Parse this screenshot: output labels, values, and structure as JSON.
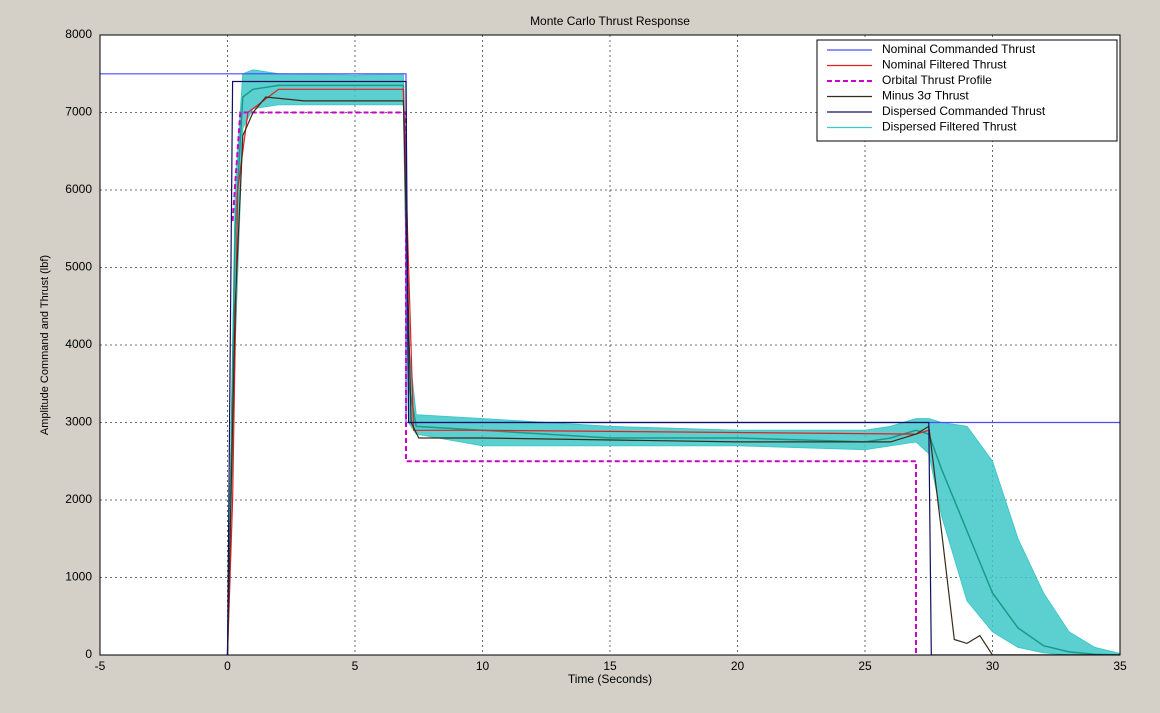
{
  "chart_data": {
    "type": "line",
    "title": "Monte Carlo Thrust Response",
    "xlabel": "Time (Seconds)",
    "ylabel": "Amplitude Command and Thrust (lbf)",
    "xlim": [
      -5,
      35
    ],
    "xticks": [
      -5,
      0,
      5,
      10,
      15,
      20,
      25,
      30,
      35
    ],
    "ylim": [
      0,
      8000
    ],
    "yticks": [
      0,
      1000,
      2000,
      3000,
      4000,
      5000,
      6000,
      7000,
      8000
    ],
    "grid": true,
    "legend": "upper right",
    "series": [
      {
        "name": "Nominal Commanded Thrust",
        "color": "#4b4bff",
        "style": "solid",
        "x": [
          -5,
          7,
          7,
          35
        ],
        "values": [
          7500,
          7500,
          3000,
          3000
        ]
      },
      {
        "name": "Nominal Filtered Thrust",
        "color": "#e02020",
        "style": "solid",
        "x": [
          0,
          0.2,
          0.4,
          0.8,
          2,
          6.9,
          7.1,
          7.3,
          10,
          27,
          27.5
        ],
        "values": [
          0,
          2000,
          6000,
          7000,
          7300,
          7300,
          5000,
          2900,
          2900,
          2850,
          2900
        ]
      },
      {
        "name": "Orbital Thrust Profile",
        "color": "#cc00cc",
        "style": "dashed",
        "x": [
          0.2,
          0.5,
          7,
          7,
          27,
          27
        ],
        "values": [
          5600,
          7000,
          7000,
          2500,
          2500,
          0
        ]
      },
      {
        "name": "Minus 3σ Thrust",
        "color": "#3a2a1a",
        "style": "solid",
        "x": [
          0,
          0.3,
          0.6,
          1,
          1.5,
          3,
          6.9,
          7.2,
          7.5,
          10,
          20,
          26,
          27,
          27.5,
          28,
          28.5,
          29,
          29.5,
          30,
          35
        ],
        "values": [
          0,
          4500,
          6700,
          7000,
          7200,
          7150,
          7150,
          3000,
          2800,
          2800,
          2750,
          2750,
          2850,
          2950,
          1600,
          200,
          150,
          250,
          0,
          0
        ]
      },
      {
        "name": "Dispersed Commanded Thrust",
        "color": "#101060",
        "style": "solid",
        "x": [
          0,
          0.2,
          7,
          7.1,
          27.5,
          27.6,
          35
        ],
        "values": [
          0,
          7400,
          7400,
          3000,
          3000,
          0,
          0
        ]
      },
      {
        "name": "Dispersed Filtered Thrust",
        "color": "#40c8c8",
        "line_color": "#1a9a8a",
        "style": "band",
        "x": [
          0,
          0.3,
          0.6,
          1,
          2,
          5,
          6.9,
          7.1,
          7.4,
          10,
          15,
          20,
          25,
          26,
          27,
          27.5,
          28,
          29,
          30,
          31,
          32,
          33,
          34,
          35
        ],
        "values": [
          0,
          5500,
          7200,
          7300,
          7350,
          7350,
          7350,
          3500,
          2950,
          2900,
          2800,
          2800,
          2750,
          2800,
          2900,
          2850,
          2400,
          1600,
          800,
          350,
          120,
          40,
          10,
          0
        ],
        "upper": [
          0,
          6000,
          7500,
          7550,
          7500,
          7480,
          7500,
          4000,
          3100,
          3050,
          2950,
          2900,
          2900,
          2950,
          3050,
          3050,
          3000,
          2950,
          2500,
          1500,
          800,
          300,
          100,
          20
        ],
        "lower": [
          0,
          4000,
          6800,
          7050,
          7100,
          7100,
          7100,
          3000,
          2850,
          2700,
          2700,
          2700,
          2650,
          2700,
          2750,
          2600,
          1800,
          700,
          300,
          100,
          30,
          0,
          0,
          0
        ]
      }
    ]
  }
}
